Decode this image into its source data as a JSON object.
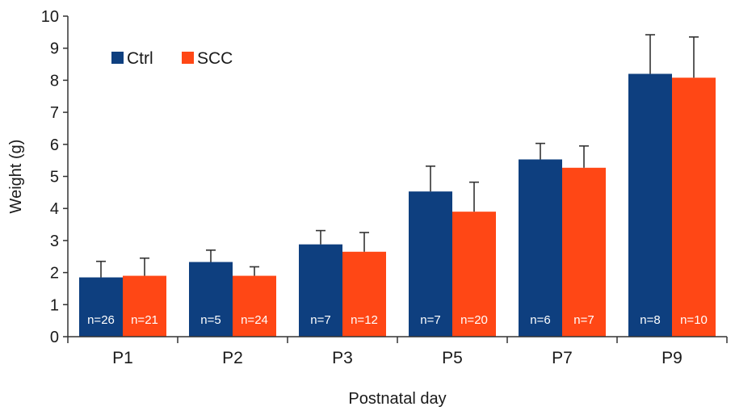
{
  "chart_data": {
    "type": "bar",
    "xlabel": "Postnatal day",
    "ylabel": "Weight (g)",
    "ylim": [
      0,
      10
    ],
    "yticks": [
      0,
      1,
      2,
      3,
      4,
      5,
      6,
      7,
      8,
      9,
      10
    ],
    "categories": [
      "P1",
      "P2",
      "P3",
      "P5",
      "P7",
      "P9"
    ],
    "legend_position": "top-left",
    "series": [
      {
        "name": "Ctrl",
        "color": "#0e3f7f",
        "values": [
          1.85,
          2.33,
          2.88,
          4.53,
          5.53,
          8.2
        ],
        "errors": [
          0.5,
          0.37,
          0.43,
          0.79,
          0.5,
          1.22
        ],
        "n_labels": [
          "n=26",
          "n=5",
          "n=7",
          "n=7",
          "n=6",
          "n=8"
        ]
      },
      {
        "name": "SCC",
        "color": "#ff4715",
        "values": [
          1.9,
          1.9,
          2.65,
          3.9,
          5.27,
          8.08
        ],
        "errors": [
          0.55,
          0.28,
          0.6,
          0.92,
          0.68,
          1.27
        ],
        "n_labels": [
          "n=21",
          "n=24",
          "n=12",
          "n=20",
          "n=7",
          "n=10"
        ]
      }
    ]
  }
}
